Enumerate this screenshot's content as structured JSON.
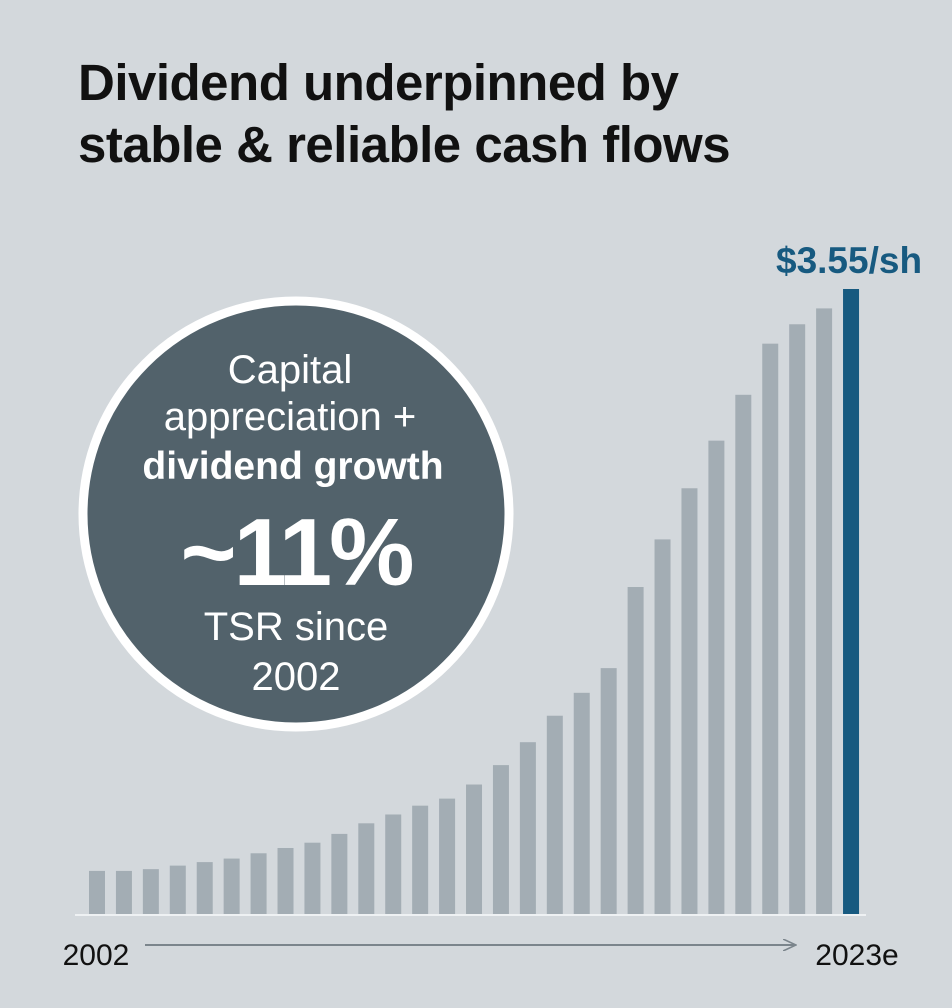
{
  "chart_data": {
    "type": "bar",
    "title": [
      "Dividend underpinned by",
      "stable & reliable cash flows"
    ],
    "categories": [
      "2002",
      null,
      null,
      null,
      null,
      null,
      null,
      null,
      null,
      null,
      null,
      null,
      null,
      null,
      null,
      null,
      null,
      null,
      null,
      null,
      null,
      null,
      null,
      null,
      null,
      null,
      null,
      null,
      "2023e"
    ],
    "values": [
      0.25,
      0.25,
      0.26,
      0.28,
      0.3,
      0.32,
      0.35,
      0.38,
      0.41,
      0.46,
      0.52,
      0.57,
      0.62,
      0.66,
      0.74,
      0.85,
      0.98,
      1.13,
      1.26,
      1.4,
      1.86,
      2.13,
      2.42,
      2.69,
      2.95,
      3.24,
      3.35,
      3.44,
      3.55
    ],
    "value_labels": [
      null,
      null,
      null,
      null,
      null,
      null,
      null,
      null,
      null,
      null,
      null,
      null,
      null,
      null,
      null,
      null,
      null,
      null,
      null,
      null,
      null,
      null,
      null,
      null,
      null,
      null,
      null,
      null,
      "$3.55/sh"
    ],
    "colors": [
      "#a3adb4",
      "#a3adb4",
      "#a3adb4",
      "#a3adb4",
      "#a3adb4",
      "#a3adb4",
      "#a3adb4",
      "#a3adb4",
      "#a3adb4",
      "#a3adb4",
      "#a3adb4",
      "#a3adb4",
      "#a3adb4",
      "#a3adb4",
      "#a3adb4",
      "#a3adb4",
      "#a3adb4",
      "#a3adb4",
      "#a3adb4",
      "#a3adb4",
      "#a3adb4",
      "#a3adb4",
      "#a3adb4",
      "#a3adb4",
      "#a3adb4",
      "#a3adb4",
      "#a3adb4",
      "#a3adb4",
      "#175a80"
    ],
    "annotation": [
      "Capital",
      "appreciation +",
      "dividend growth",
      "~11%",
      "TSR since",
      "2002"
    ]
  }
}
